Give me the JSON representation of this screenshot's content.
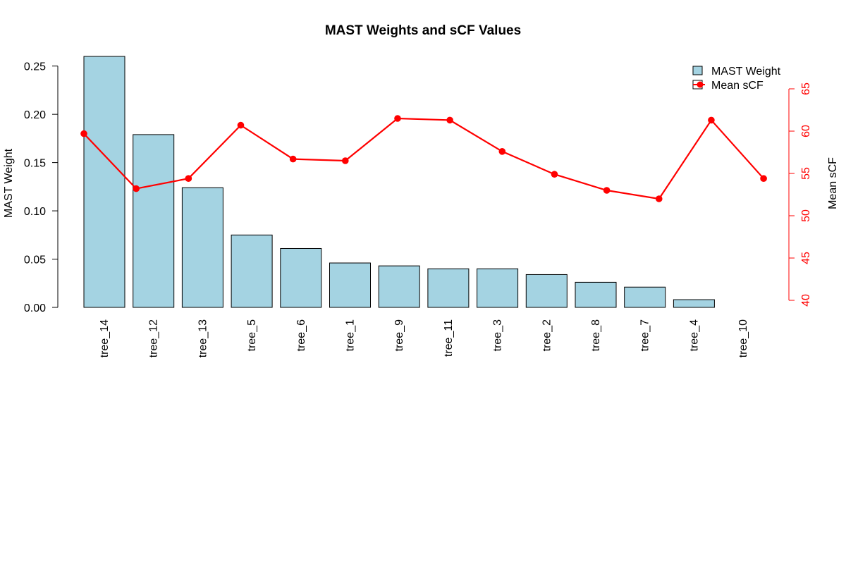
{
  "chart_data": {
    "type": "bar",
    "title": "MAST Weights and sCF Values",
    "categories": [
      "tree_14",
      "tree_12",
      "tree_13",
      "tree_5",
      "tree_6",
      "tree_1",
      "tree_9",
      "tree_11",
      "tree_3",
      "tree_2",
      "tree_8",
      "tree_7",
      "tree_4",
      "tree_10"
    ],
    "series": [
      {
        "name": "MAST Weight",
        "type": "bar",
        "axis": "left",
        "color": "#A4D3E2",
        "values": [
          0.26,
          0.179,
          0.124,
          0.075,
          0.061,
          0.046,
          0.043,
          0.04,
          0.04,
          0.034,
          0.026,
          0.021,
          0.008,
          0.0
        ]
      },
      {
        "name": "Mean sCF",
        "type": "line",
        "axis": "right",
        "color": "#FF0000",
        "values": [
          59.7,
          53.2,
          54.4,
          60.7,
          56.7,
          56.5,
          61.5,
          61.3,
          57.6,
          54.9,
          53.0,
          52.0,
          61.3,
          54.4
        ]
      }
    ],
    "ylabel": "MAST Weight",
    "ylim": [
      0,
      0.26
    ],
    "yticks": [
      "0.00",
      "0.05",
      "0.10",
      "0.15",
      "0.20",
      "0.25"
    ],
    "y2label": "Mean sCF",
    "y2lim": [
      40,
      65
    ],
    "y2ticks": [
      "40",
      "45",
      "50",
      "55",
      "60",
      "65"
    ],
    "axis_color_right": "#FF0000",
    "grid": false,
    "legend_position": "top-right"
  }
}
